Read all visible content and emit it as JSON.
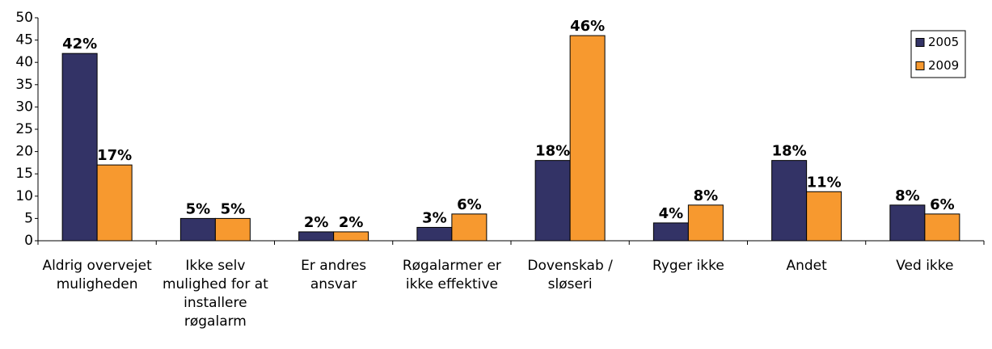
{
  "chart_data": {
    "type": "bar",
    "categories": [
      "Aldrig overvejet muligheden",
      "Ikke selv mulighed for at installere røgalarm",
      "Er andres ansvar",
      "Røgalarmer er ikke effektive",
      "Dovenskab / sløseri",
      "Ryger ikke",
      "Andet",
      "Ved ikke"
    ],
    "series": [
      {
        "name": "2005",
        "color": "#333366",
        "values": [
          42,
          5,
          2,
          3,
          18,
          4,
          18,
          8
        ],
        "value_labels": [
          "42%",
          "5%",
          "2%",
          "3%",
          "18%",
          "4%",
          "18%",
          "8%"
        ]
      },
      {
        "name": "2009",
        "color": "#f7992f",
        "values": [
          17,
          5,
          2,
          6,
          46,
          8,
          11,
          6
        ],
        "value_labels": [
          "17%",
          "5%",
          "2%",
          "6%",
          "46%",
          "8%",
          "11%",
          "6%"
        ]
      }
    ],
    "ylim": [
      0,
      50
    ],
    "yticks": [
      0,
      5,
      10,
      15,
      20,
      25,
      30,
      35,
      40,
      45,
      50
    ],
    "grid": false,
    "legend": "top-right"
  }
}
